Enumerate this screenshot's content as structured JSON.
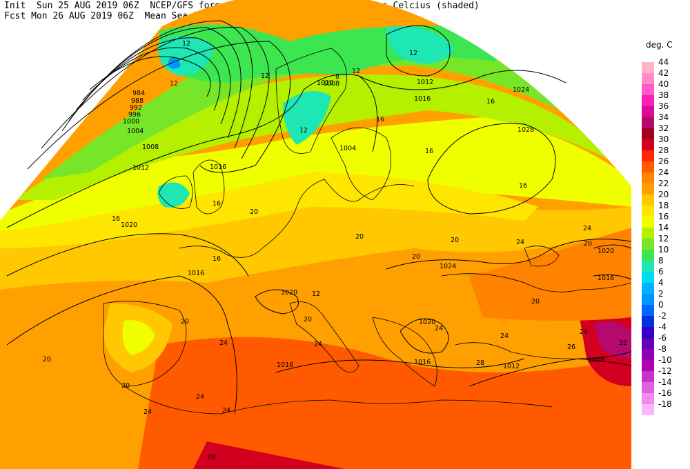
{
  "header": {
    "line1": "Init  Sun 25 AUG 2019 06Z  NCEP/GFS forecast 2m temperatures in degrees Celcius (shaded)",
    "line2": "Fcst Mon 26 AUG 2019 06Z  Mean Sea-Level Pressure (hPa) (black)."
  },
  "legend": {
    "unit": "deg. C",
    "entries": [
      {
        "label": "44",
        "color": "#ffb4c8"
      },
      {
        "label": "42",
        "color": "#ff8cc8"
      },
      {
        "label": "40",
        "color": "#ff5ac8"
      },
      {
        "label": "38",
        "color": "#ff1eb4"
      },
      {
        "label": "36",
        "color": "#dc0a96"
      },
      {
        "label": "34",
        "color": "#b40a6e"
      },
      {
        "label": "32",
        "color": "#a0001e"
      },
      {
        "label": "30",
        "color": "#d2001e"
      },
      {
        "label": "28",
        "color": "#ff2800"
      },
      {
        "label": "26",
        "color": "#ff5a00"
      },
      {
        "label": "24",
        "color": "#ff8200"
      },
      {
        "label": "22",
        "color": "#ffa000"
      },
      {
        "label": "20",
        "color": "#ffc800"
      },
      {
        "label": "18",
        "color": "#ffe600"
      },
      {
        "label": "16",
        "color": "#f0ff00"
      },
      {
        "label": "14",
        "color": "#b4f000"
      },
      {
        "label": "12",
        "color": "#78e628"
      },
      {
        "label": "10",
        "color": "#3ce650"
      },
      {
        "label": "8",
        "color": "#1ee6b4"
      },
      {
        "label": "6",
        "color": "#00dcf0"
      },
      {
        "label": "4",
        "color": "#00b4ff"
      },
      {
        "label": "2",
        "color": "#0096ff"
      },
      {
        "label": "0",
        "color": "#0064ff"
      },
      {
        "label": "-2",
        "color": "#0032dc"
      },
      {
        "label": "-4",
        "color": "#3200c8"
      },
      {
        "label": "-6",
        "color": "#6400b4"
      },
      {
        "label": "-8",
        "color": "#8c00b4"
      },
      {
        "label": "-10",
        "color": "#b400b4"
      },
      {
        "label": "-12",
        "color": "#c832c8"
      },
      {
        "label": "-14",
        "color": "#dc64dc"
      },
      {
        "label": "-16",
        "color": "#f08cf0"
      },
      {
        "label": "-18",
        "color": "#ffb4ff"
      }
    ]
  },
  "pressure_labels": [
    "984",
    "988",
    "992",
    "996",
    "1000",
    "1004",
    "1008",
    "1012",
    "1016",
    "1020",
    "1024",
    "1028",
    "1010",
    "1004",
    "1008",
    "1012",
    "1016",
    "1020",
    "1024",
    "1016",
    "1020",
    "1016",
    "1012",
    "1008",
    "1020",
    "1016",
    "1012",
    "1024",
    "1016",
    "1020"
  ],
  "temp_labels": [
    "12",
    "12",
    "12",
    "8",
    "12",
    "12",
    "16",
    "12",
    "16",
    "16",
    "16",
    "16",
    "16",
    "20",
    "16",
    "20",
    "20",
    "20",
    "20",
    "24",
    "24",
    "20",
    "16",
    "16",
    "20",
    "12",
    "20",
    "24",
    "20",
    "24",
    "24",
    "24",
    "26",
    "28",
    "32",
    "20",
    "20",
    "24",
    "24",
    "24",
    "24",
    "28"
  ]
}
